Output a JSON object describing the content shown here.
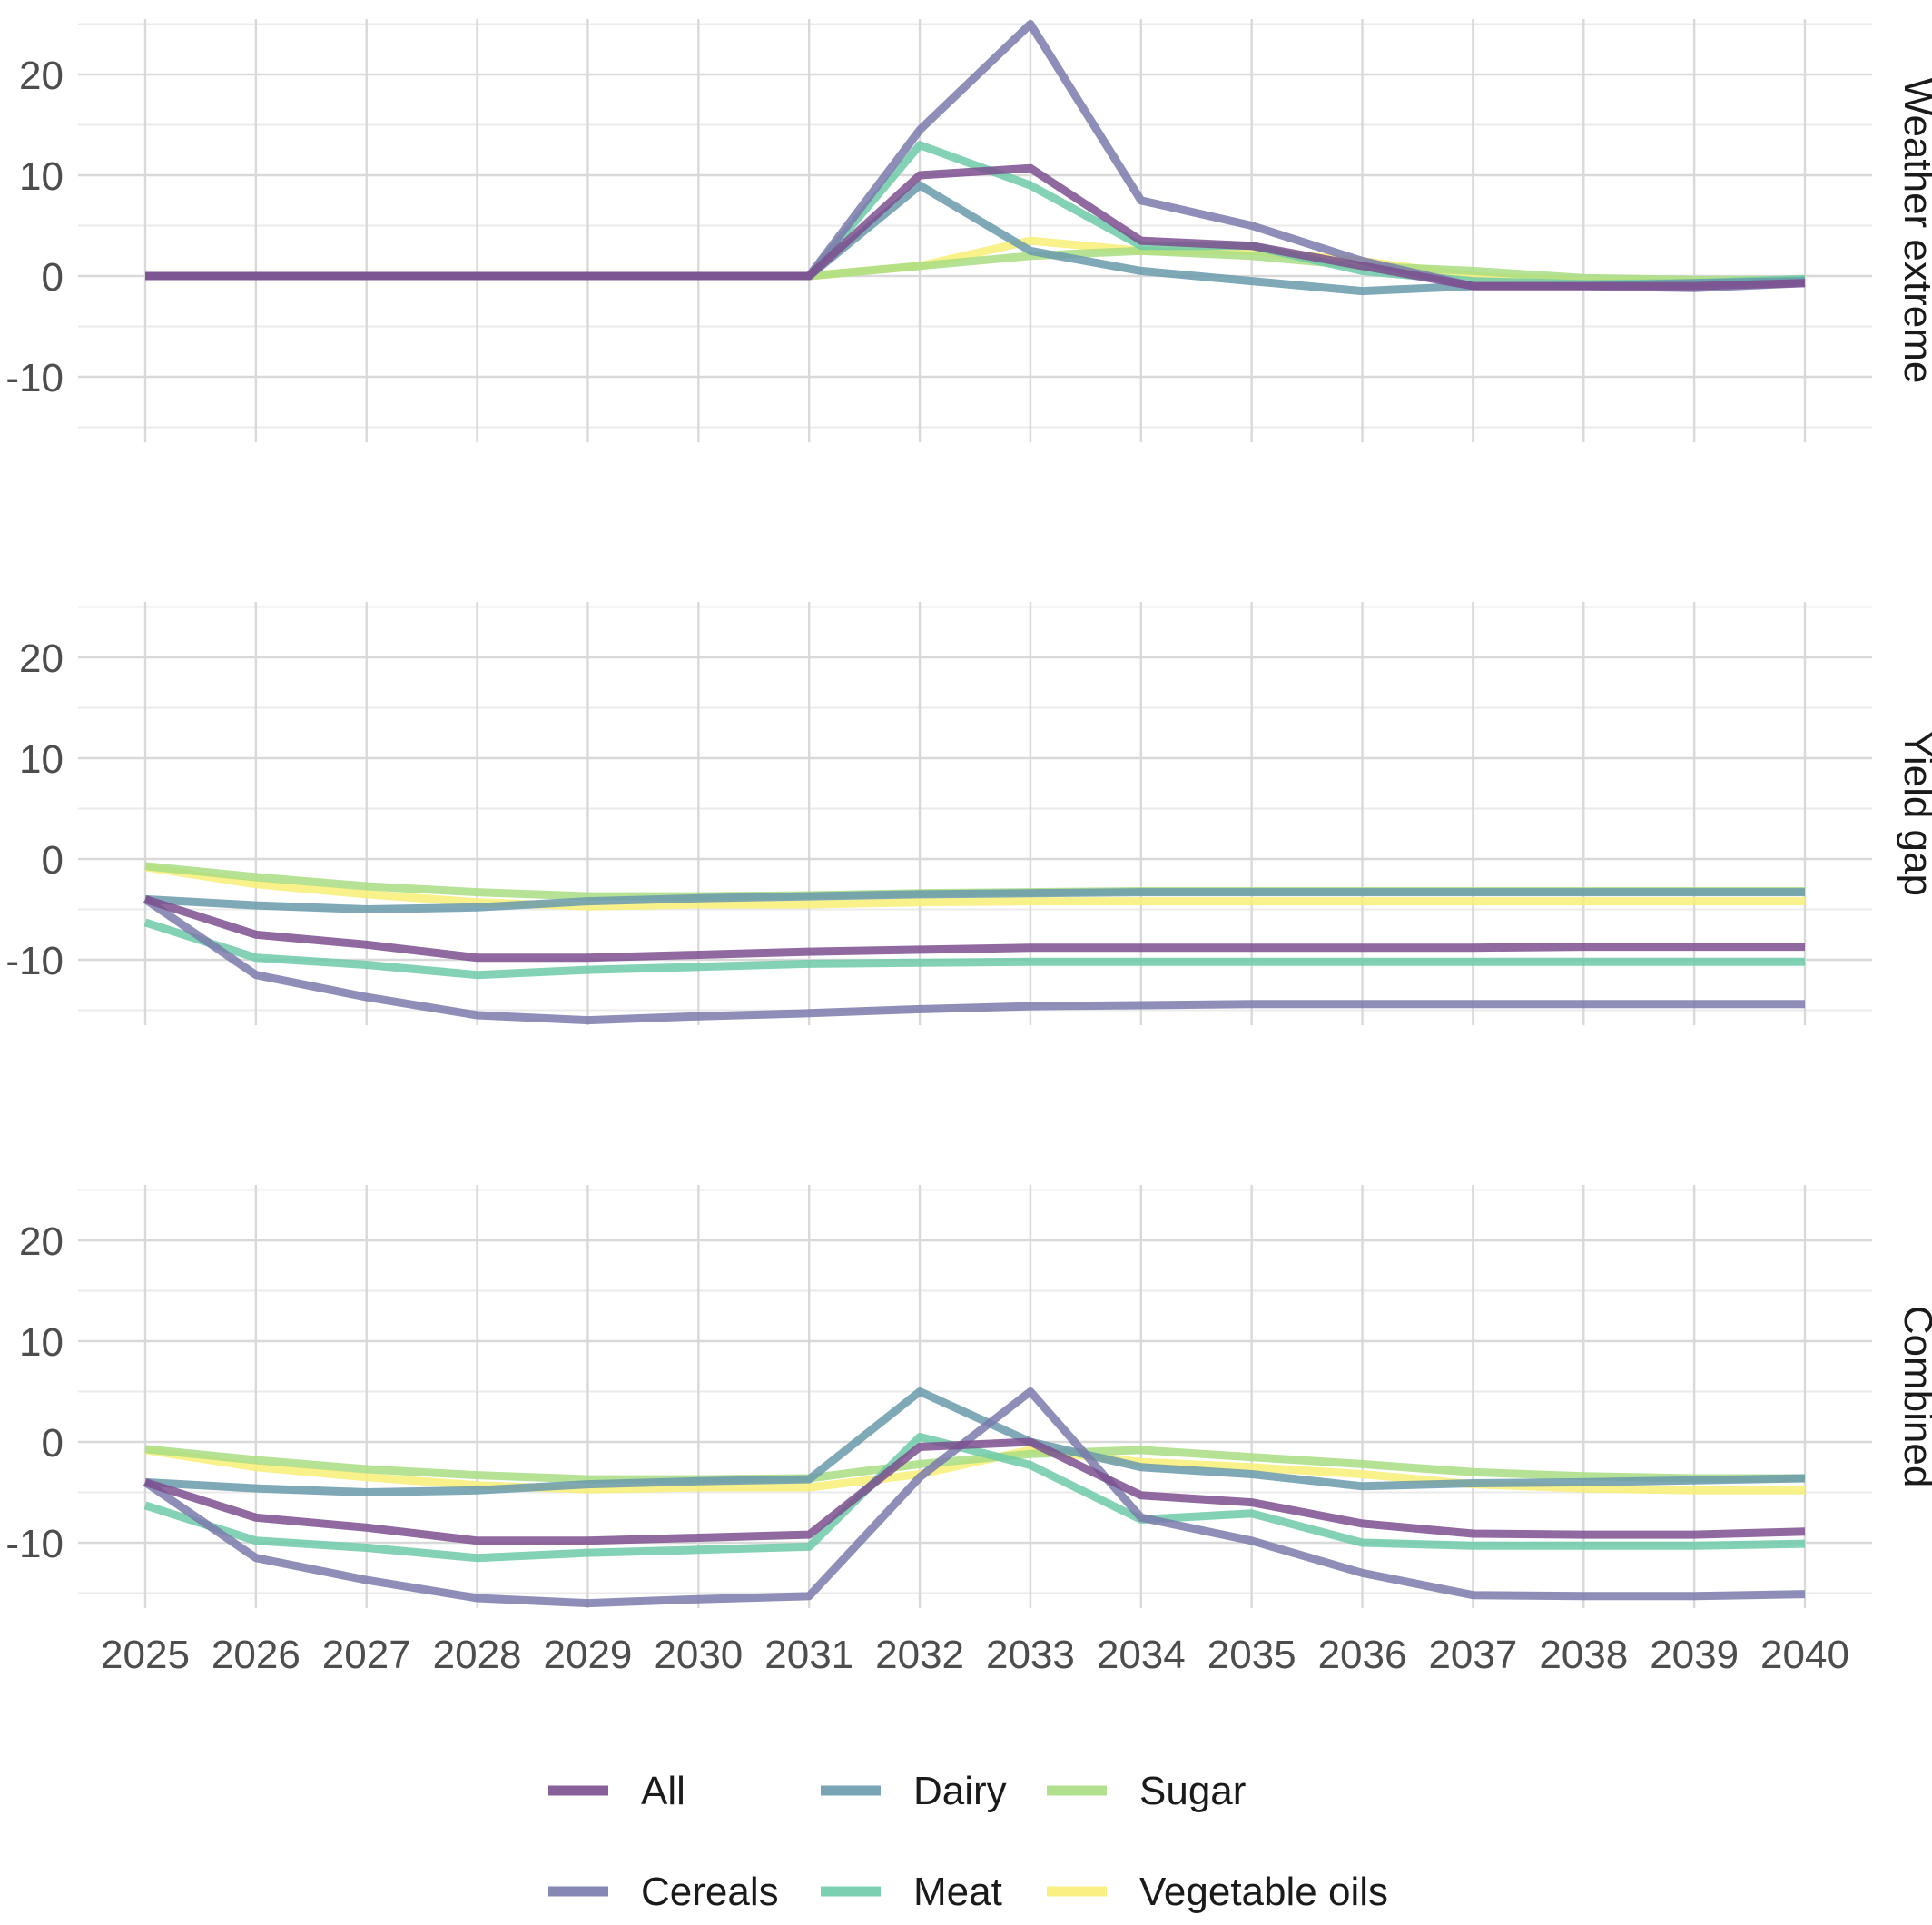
{
  "chart_data": {
    "type": "line",
    "facet_layout": "vertical",
    "x": [
      "2025",
      "2026",
      "2027",
      "2028",
      "2029",
      "2030",
      "2031",
      "2032",
      "2033",
      "2034",
      "2035",
      "2036",
      "2037",
      "2038",
      "2039",
      "2040"
    ],
    "ylim": [
      -15,
      25
    ],
    "y_ticks": [
      "20",
      "10",
      "0",
      "-10"
    ],
    "y_tick_values": [
      20,
      10,
      0,
      -10
    ],
    "grid": true,
    "legend": {
      "position": "bottom",
      "entries": [
        "All",
        "Dairy",
        "Sugar",
        "Cereals",
        "Meat",
        "Vegetable oils"
      ]
    },
    "series_colors": {
      "All": "#7b4f8e",
      "Cereals": "#7a7aab",
      "Dairy": "#6a9aab",
      "Meat": "#6fcaa8",
      "Sugar": "#a9dd83",
      "Vegetable oils": "#f8ee75"
    },
    "panels": [
      {
        "label": "Weather extreme",
        "series": [
          {
            "name": "All",
            "values": [
              0,
              0,
              0,
              0,
              0,
              0,
              0,
              10,
              10.7,
              3.5,
              3,
              1,
              -1,
              -1,
              -1,
              -0.7
            ]
          },
          {
            "name": "Cereals",
            "values": [
              0,
              0,
              0,
              0,
              0,
              0,
              0,
              14.5,
              25,
              7.5,
              5,
              1.5,
              -1,
              -1,
              -1.2,
              -0.7
            ]
          },
          {
            "name": "Dairy",
            "values": [
              0,
              0,
              0,
              0,
              0,
              0,
              0,
              9,
              2.5,
              0.5,
              -0.5,
              -1.5,
              -1,
              -1,
              -0.7,
              -0.5
            ]
          },
          {
            "name": "Meat",
            "values": [
              0,
              0,
              0,
              0,
              0,
              0,
              0,
              13,
              9,
              3,
              3,
              0.5,
              -0.5,
              -0.8,
              -0.7,
              -0.3
            ]
          },
          {
            "name": "Sugar",
            "values": [
              0,
              0,
              0,
              0,
              0,
              0,
              0,
              1,
              2,
              2.5,
              2,
              1,
              0.5,
              -0.2,
              -0.4,
              -0.4
            ]
          },
          {
            "name": "Vegetable oils",
            "values": [
              0,
              0,
              0,
              0,
              0,
              0,
              0,
              1,
              3.5,
              2.5,
              2.5,
              1.5,
              0,
              -0.5,
              -0.6,
              -0.6
            ]
          }
        ]
      },
      {
        "label": "Yield gap",
        "series": [
          {
            "name": "All",
            "values": [
              -4,
              -7.5,
              -8.5,
              -9.8,
              -9.8,
              -9.5,
              -9.2,
              -9,
              -8.8,
              -8.8,
              -8.8,
              -8.8,
              -8.8,
              -8.7,
              -8.7,
              -8.7
            ]
          },
          {
            "name": "Cereals",
            "values": [
              -4,
              -11.5,
              -13.7,
              -15.5,
              -16,
              -15.6,
              -15.3,
              -14.9,
              -14.6,
              -14.5,
              -14.4,
              -14.4,
              -14.4,
              -14.4,
              -14.4,
              -14.4
            ]
          },
          {
            "name": "Dairy",
            "values": [
              -4,
              -4.6,
              -5,
              -4.8,
              -4.2,
              -3.9,
              -3.7,
              -3.5,
              -3.4,
              -3.3,
              -3.3,
              -3.3,
              -3.3,
              -3.3,
              -3.3,
              -3.3
            ]
          },
          {
            "name": "Meat",
            "values": [
              -6.3,
              -9.8,
              -10.5,
              -11.5,
              -11,
              -10.7,
              -10.4,
              -10.3,
              -10.2,
              -10.2,
              -10.2,
              -10.2,
              -10.2,
              -10.2,
              -10.2,
              -10.2
            ]
          },
          {
            "name": "Sugar",
            "values": [
              -0.7,
              -1.8,
              -2.7,
              -3.3,
              -3.7,
              -3.7,
              -3.6,
              -3.4,
              -3.3,
              -3.2,
              -3.2,
              -3.2,
              -3.2,
              -3.2,
              -3.2,
              -3.2
            ]
          },
          {
            "name": "Vegetable oils",
            "values": [
              -0.8,
              -2.5,
              -3.5,
              -4.3,
              -4.7,
              -4.5,
              -4.5,
              -4.3,
              -4.2,
              -4.2,
              -4.2,
              -4.2,
              -4.2,
              -4.2,
              -4.2,
              -4.2
            ]
          }
        ]
      },
      {
        "label": "Combined",
        "series": [
          {
            "name": "All",
            "values": [
              -4,
              -7.5,
              -8.5,
              -9.8,
              -9.8,
              -9.5,
              -9.2,
              -0.5,
              0,
              -5.3,
              -6,
              -8.1,
              -9.1,
              -9.2,
              -9.2,
              -8.9
            ]
          },
          {
            "name": "Cereals",
            "values": [
              -4,
              -11.5,
              -13.7,
              -15.5,
              -16,
              -15.6,
              -15.3,
              -3.5,
              5,
              -7.5,
              -9.8,
              -13,
              -15.2,
              -15.3,
              -15.3,
              -15.1
            ]
          },
          {
            "name": "Dairy",
            "values": [
              -4,
              -4.6,
              -5,
              -4.8,
              -4.2,
              -3.9,
              -3.7,
              5,
              0,
              -2.5,
              -3.2,
              -4.4,
              -4.1,
              -4,
              -3.8,
              -3.6
            ]
          },
          {
            "name": "Meat",
            "values": [
              -6.3,
              -9.8,
              -10.5,
              -11.5,
              -11,
              -10.7,
              -10.4,
              0.5,
              -2.3,
              -7.7,
              -7.1,
              -10,
              -10.3,
              -10.3,
              -10.3,
              -10.1
            ]
          },
          {
            "name": "Sugar",
            "values": [
              -0.7,
              -1.8,
              -2.7,
              -3.3,
              -3.7,
              -3.7,
              -3.6,
              -2.2,
              -1.2,
              -0.8,
              -1.5,
              -2.2,
              -3,
              -3.4,
              -3.6,
              -3.6
            ]
          },
          {
            "name": "Vegetable oils",
            "values": [
              -0.8,
              -2.5,
              -3.5,
              -4.3,
              -4.7,
              -4.5,
              -4.5,
              -3.2,
              -0.8,
              -2,
              -2.5,
              -3.2,
              -4.2,
              -4.6,
              -4.8,
              -4.8
            ]
          }
        ]
      }
    ]
  }
}
